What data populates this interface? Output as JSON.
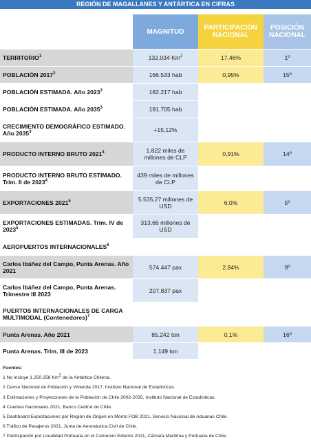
{
  "header": {
    "title": "REGIÓN DE MAGALLANES Y ANTÁRTICA EN CIFRAS"
  },
  "table": {
    "columns": [
      "MAGNITUD",
      "PARTICIPACIÓN NACIONAL",
      "POSICIÓN NACIONAL"
    ],
    "rows": [
      {
        "label": "TERRITORIO",
        "note": "1",
        "magnitude": "132.034 Km",
        "magnitude_sup": "2",
        "share": "17,46%",
        "rank": "1º"
      },
      {
        "label": "POBLACIÓN 2017",
        "note": "2",
        "magnitude": "166.533 hab",
        "share": "0,95%",
        "rank": "15º"
      },
      {
        "label": "POBLACIÓN ESTIMADA. Año 2023",
        "note": "3",
        "magnitude": "182.217 hab"
      },
      {
        "label": "POBLACIÓN ESTIMADA. Año 2035",
        "note": "3",
        "magnitude": "191.705 hab"
      },
      {
        "label": "CRECIMIENTO DEMOGRÁFICO ESTIMADO. Año 2035",
        "note": "3",
        "magnitude": "+15,12%"
      },
      {
        "label": "PRODUCTO INTERNO BRUTO 2021",
        "note": "4",
        "magnitude": "1.822 miles de millones de CLP",
        "share": "0,91%",
        "rank": "14º"
      },
      {
        "label": "PRODUCTO INTERNO BRUTO ESTIMADO. Trim. II de 2023",
        "note": "4",
        "magnitude": "439 miles de millones de CLP"
      },
      {
        "label": "EXPORTACIONES 2021",
        "note": "5",
        "magnitude": "5.535,27 millones de USD",
        "share": "6,0%",
        "rank": "5º"
      },
      {
        "label": "EXPORTACIONES ESTIMADAS. Trim. IV de 2023",
        "note": "5",
        "magnitude": "313,66 millones de USD"
      },
      {
        "label": "AEROPUERTOS INTERNACIONALES",
        "note": "6"
      },
      {
        "label": "Carlos Ibáñez del Campo, Punta Arenas. Año 2021",
        "magnitude": "574.447 pax",
        "share": "2,84%",
        "rank": "9º"
      },
      {
        "label": "Carlos Ibáñez del Campo, Punta Arenas. Trimestre III 2023",
        "magnitude": "207.837 pax"
      },
      {
        "label": "PUERTOS INTERNACIONALES DE CARGA MULTIMODAL (Contenedores)",
        "note": "7"
      },
      {
        "label": "Punta Arenas. Año 2021",
        "magnitude": "85.242 ton",
        "share": "0,1%",
        "rank": "16º"
      },
      {
        "label": "Punta Arenas. Trim. III de 2023",
        "magnitude": "1.149 ton"
      }
    ]
  },
  "sources": {
    "title": "Fuentes:",
    "items": [
      {
        "text": "1 No incluye 1.250.258 Km",
        "sup": "2",
        "tail": " de la Antártica Chilena."
      },
      {
        "text": "2 Censo Nacional de Población y Vivienda 2017, Instituto Nacional de Estadísticas."
      },
      {
        "text": "3 Estimaciones y Proyecciones de la Población de Chile 2002-2035, Instituto Nacional de Estadísticas."
      },
      {
        "text": "4 Cuentas Nacionales 2021, Banco Central de Chile."
      },
      {
        "text": "5 Dashboard Exportaciones por Región de Origen en Monto FOB 2021, Servicio Nacional de Aduanas Chile."
      },
      {
        "text": "6 Tráfico de Pasajeros 2021, Junta de Aeronáutica Civil de Chile."
      },
      {
        "text": "7 Participación por Localidad Portuaria en el Comercio Exterior 2021, Cámara Marítima y Portuaria de Chile."
      }
    ]
  }
}
